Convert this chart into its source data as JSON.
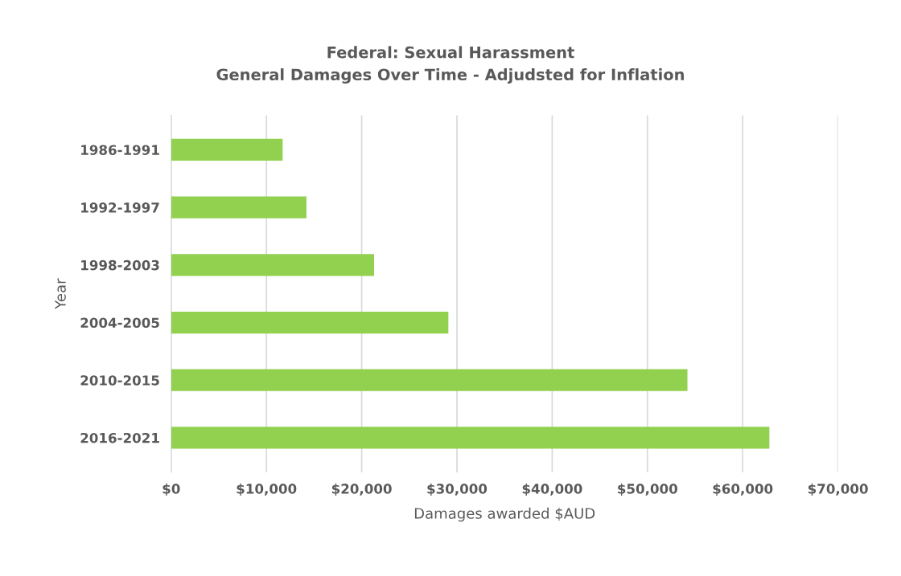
{
  "chart_data": {
    "type": "bar",
    "orientation": "horizontal",
    "title": "Federal: Sexual Harassment\nGeneral Damages Over Time - Adjudsted for Inflation",
    "xlabel": "Damages awarded $AUD",
    "ylabel": "Year",
    "categories": [
      "1986-1991",
      "1992-1997",
      "1998-2003",
      "2004-2005",
      "2010-2015",
      "2016-2021"
    ],
    "values": [
      11700,
      14200,
      21300,
      29100,
      54200,
      62800
    ],
    "color": "#92d050",
    "xlim": [
      0,
      70000
    ],
    "xticks": [
      {
        "value": 0,
        "label": "$0"
      },
      {
        "value": 10000,
        "label": "$10,000"
      },
      {
        "value": 20000,
        "label": "$20,000"
      },
      {
        "value": 30000,
        "label": "$30,000"
      },
      {
        "value": 40000,
        "label": "$40,000"
      },
      {
        "value": 50000,
        "label": "$50,000"
      },
      {
        "value": 60000,
        "label": "$60,000"
      },
      {
        "value": 70000,
        "label": "$70,000"
      }
    ],
    "grid": "x",
    "legend": false
  }
}
